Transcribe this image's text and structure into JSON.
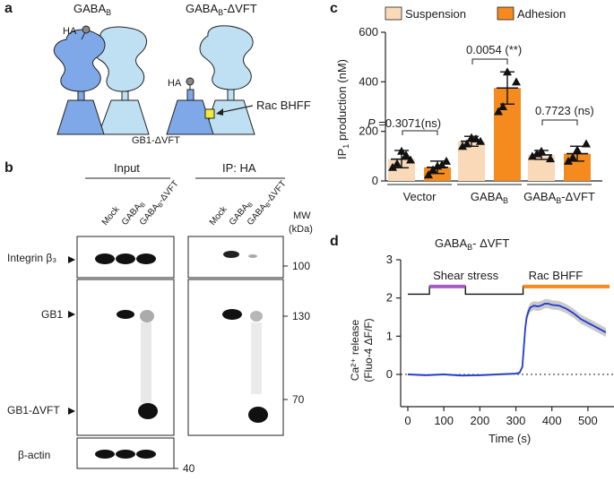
{
  "panels": {
    "a": "a",
    "b": "b",
    "c": "c",
    "d": "d"
  },
  "panel_a": {
    "left_title": "GABA",
    "left_title_sub": "B",
    "right_title": "GABA",
    "right_title_sub": "B",
    "right_title_suffix": "-ΔVFT",
    "ha_left": "HA",
    "ha_right": "HA",
    "rac_label": "Rac BHFF",
    "gb1_label": "GB1-ΔVFT",
    "colors": {
      "gb1": "#7fa8e8",
      "gb2": "#bfe0f2",
      "ligand": "#f2ea3a"
    }
  },
  "panel_b": {
    "input_header": "Input",
    "ip_header": "IP: HA",
    "lanes": [
      "Mock",
      "GABA",
      "GABA"
    ],
    "lane_subs": [
      "",
      "B",
      "B"
    ],
    "lane_suffix": [
      "",
      "",
      "-ΔVFT"
    ],
    "mw_header_1": "MW",
    "mw_header_2": "(kDa)",
    "row_labels": [
      "Integrin β₃",
      "GB1",
      "GB1-ΔVFT",
      "β-actin"
    ],
    "mw_marks": [
      "100",
      "130",
      "70",
      "40"
    ]
  },
  "chart_data": [
    {
      "type": "bar",
      "panel": "c",
      "categories": [
        "Vector",
        "GABA",
        "GABA"
      ],
      "category_subs": [
        "",
        "B",
        "B"
      ],
      "category_suffix": [
        "",
        "",
        "-ΔVFT"
      ],
      "series": [
        {
          "name": "Suspension",
          "color": "#f9d9b8",
          "values": [
            88,
            160,
            105
          ],
          "errors": [
            35,
            20,
            18
          ]
        },
        {
          "name": "Adhesion",
          "color": "#f58a1f",
          "values": [
            55,
            375,
            110
          ],
          "errors": [
            25,
            65,
            30
          ]
        }
      ],
      "points": {
        "Suspension": [
          [
            55,
            120,
            85,
            70,
            105
          ],
          [
            140,
            175,
            160,
            150,
            170
          ],
          [
            100,
            120,
            90,
            110
          ]
        ],
        "Adhesion": [
          [
            25,
            60,
            80,
            45,
            65
          ],
          [
            280,
            440,
            400,
            300
          ],
          [
            80,
            125,
            150,
            95
          ]
        ]
      },
      "annotations": [
        "P =0.3071(ns)",
        "0.0054 (**)",
        "0.7723 (ns)"
      ],
      "ylabel": "IP",
      "ylabel_sub": "1",
      "ylabel_suffix": " production (nM)",
      "yticks": [
        "0",
        "200",
        "400",
        "600"
      ],
      "ylim": [
        0,
        600
      ]
    },
    {
      "type": "line",
      "panel": "d",
      "title": "GABA",
      "title_sub": "B",
      "title_suffix": "- ΔVFT",
      "xlabel": "Time (s)",
      "ylabel_1": "Ca²⁺ release",
      "ylabel_2": "(Fluo-4 ΔF/F)",
      "xticks": [
        "0",
        "100",
        "200",
        "300",
        "400",
        "500"
      ],
      "yticks": [
        "0",
        "1",
        "2",
        "3"
      ],
      "xlim": [
        0,
        560
      ],
      "ylim": [
        0,
        3
      ],
      "shear_label": "Shear stress",
      "shear_range": [
        60,
        160
      ],
      "shear_color": "#a65cc4",
      "rac_label": "Rac BHFF",
      "rac_range": [
        320,
        560
      ],
      "rac_color": "#f58a1f",
      "line_color": "#1f3ad1",
      "x": [
        0,
        50,
        100,
        150,
        200,
        250,
        300,
        310,
        318,
        322,
        326,
        330,
        335,
        340,
        350,
        360,
        370,
        380,
        390,
        400,
        420,
        440,
        460,
        480,
        500,
        520,
        540,
        550
      ],
      "y": [
        0.0,
        -0.02,
        0.0,
        -0.03,
        -0.02,
        0.0,
        0.02,
        0.04,
        0.2,
        0.7,
        1.2,
        1.5,
        1.65,
        1.75,
        1.8,
        1.78,
        1.8,
        1.85,
        1.85,
        1.82,
        1.8,
        1.72,
        1.6,
        1.45,
        1.35,
        1.25,
        1.15,
        1.1
      ]
    }
  ]
}
